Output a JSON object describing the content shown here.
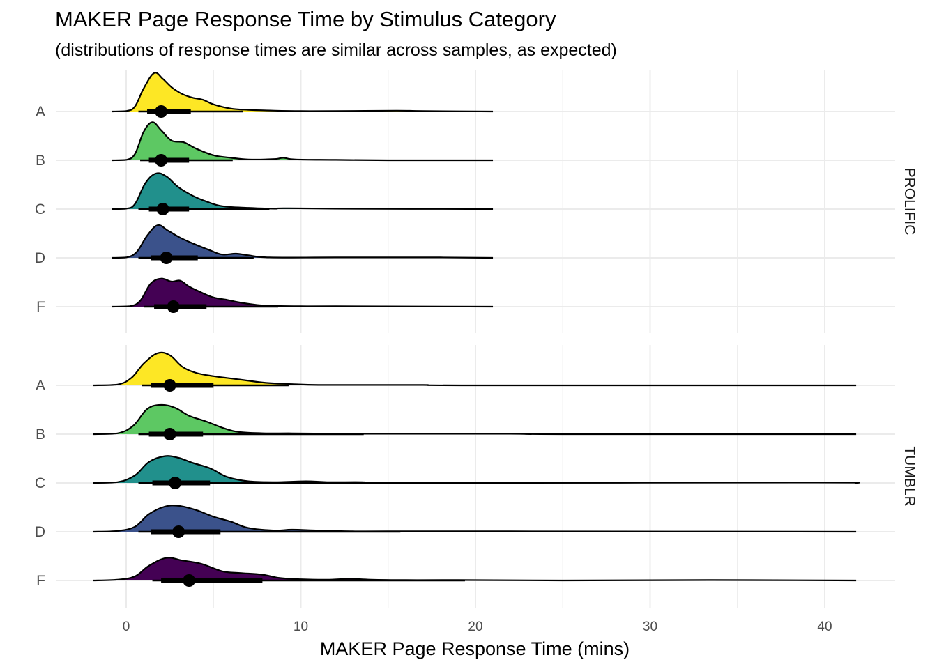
{
  "chart_data": {
    "type": "ridgeline",
    "title": "MAKER Page Response Time by Stimulus Category",
    "subtitle": "(distributions of response times are similar across samples, as expected)",
    "xlabel": "MAKER Page Response Time (mins)",
    "ylabel": "",
    "xlim": [
      -4,
      42.1
    ],
    "x_ticks": [
      0,
      10,
      20,
      30,
      40
    ],
    "categories": [
      "A",
      "B",
      "C",
      "D",
      "F"
    ],
    "grid": true,
    "colors": {
      "A": "#FDE725",
      "B": "#5DC863",
      "C": "#21908C",
      "D": "#3B528B",
      "F": "#440154"
    },
    "panels": [
      {
        "strip": "PROLIFIC",
        "density_range": [
          -0.8,
          21
        ],
        "series": [
          {
            "category": "A",
            "median": 2.0,
            "q1": 1.2,
            "q3": 3.7,
            "lo": 0.7,
            "hi": 6.7,
            "density": [
              [
                -0.8,
                0
              ],
              [
                0,
                0.01
              ],
              [
                0.5,
                0.12
              ],
              [
                1.0,
                0.55
              ],
              [
                1.6,
                0.92
              ],
              [
                2.1,
                0.78
              ],
              [
                2.6,
                0.58
              ],
              [
                3.2,
                0.42
              ],
              [
                3.8,
                0.33
              ],
              [
                4.4,
                0.28
              ],
              [
                5.0,
                0.17
              ],
              [
                6.0,
                0.07
              ],
              [
                7.0,
                0.04
              ],
              [
                8.5,
                0.02
              ],
              [
                10,
                0.01
              ],
              [
                12,
                0.01
              ],
              [
                15.5,
                0.02
              ],
              [
                17,
                0.01
              ],
              [
                21,
                0
              ]
            ]
          },
          {
            "category": "B",
            "median": 2.0,
            "q1": 1.3,
            "q3": 3.6,
            "lo": 0.8,
            "hi": 6.1,
            "density": [
              [
                -0.8,
                0
              ],
              [
                0,
                0.01
              ],
              [
                0.5,
                0.15
              ],
              [
                1.0,
                0.68
              ],
              [
                1.5,
                0.91
              ],
              [
                2.0,
                0.72
              ],
              [
                2.6,
                0.47
              ],
              [
                3.3,
                0.43
              ],
              [
                4.0,
                0.28
              ],
              [
                5.0,
                0.12
              ],
              [
                6.0,
                0.06
              ],
              [
                7.0,
                0.02
              ],
              [
                8.5,
                0.03
              ],
              [
                9,
                0.06
              ],
              [
                9.7,
                0.02
              ],
              [
                12,
                0.01
              ],
              [
                15,
                0
              ],
              [
                21,
                0
              ]
            ]
          },
          {
            "category": "C",
            "median": 2.1,
            "q1": 1.3,
            "q3": 3.6,
            "lo": 0.7,
            "hi": 8.2,
            "density": [
              [
                -0.8,
                0
              ],
              [
                0,
                0.01
              ],
              [
                0.5,
                0.12
              ],
              [
                1.1,
                0.62
              ],
              [
                1.7,
                0.85
              ],
              [
                2.3,
                0.78
              ],
              [
                3.0,
                0.52
              ],
              [
                3.8,
                0.32
              ],
              [
                4.6,
                0.18
              ],
              [
                5.5,
                0.07
              ],
              [
                7,
                0.03
              ],
              [
                8.5,
                0.01
              ],
              [
                9,
                0.02
              ],
              [
                12,
                0.01
              ],
              [
                21,
                0
              ]
            ]
          },
          {
            "category": "D",
            "median": 2.3,
            "q1": 1.4,
            "q3": 4.1,
            "lo": 0.7,
            "hi": 7.3,
            "density": [
              [
                -0.8,
                0
              ],
              [
                0,
                0.01
              ],
              [
                0.6,
                0.14
              ],
              [
                1.2,
                0.53
              ],
              [
                1.8,
                0.78
              ],
              [
                2.4,
                0.65
              ],
              [
                3.1,
                0.48
              ],
              [
                3.9,
                0.33
              ],
              [
                4.8,
                0.18
              ],
              [
                5.5,
                0.08
              ],
              [
                6.3,
                0.1
              ],
              [
                7.0,
                0.06
              ],
              [
                8.2,
                0.01
              ],
              [
                12,
                0.01
              ],
              [
                18,
                0.01
              ],
              [
                21,
                0
              ]
            ]
          },
          {
            "category": "F",
            "median": 2.7,
            "q1": 1.6,
            "q3": 4.6,
            "lo": 1.0,
            "hi": 8.7,
            "density": [
              [
                -0.8,
                0
              ],
              [
                0.2,
                0.01
              ],
              [
                0.8,
                0.14
              ],
              [
                1.4,
                0.55
              ],
              [
                2.0,
                0.67
              ],
              [
                2.6,
                0.6
              ],
              [
                3.1,
                0.62
              ],
              [
                3.6,
                0.48
              ],
              [
                4.3,
                0.34
              ],
              [
                5.0,
                0.22
              ],
              [
                5.8,
                0.16
              ],
              [
                6.5,
                0.1
              ],
              [
                7.5,
                0.04
              ],
              [
                8.5,
                0.02
              ],
              [
                10,
                0.01
              ],
              [
                12,
                0.01
              ],
              [
                21,
                0
              ]
            ]
          }
        ]
      },
      {
        "strip": "TUMBLR",
        "density_range": [
          -1.9,
          41.8
        ],
        "series": [
          {
            "category": "A",
            "median": 2.5,
            "q1": 1.4,
            "q3": 5.0,
            "lo": 0.9,
            "hi": 9.3,
            "density": [
              [
                -1.9,
                0
              ],
              [
                -0.5,
                0.02
              ],
              [
                0.3,
                0.18
              ],
              [
                1.0,
                0.52
              ],
              [
                1.8,
                0.77
              ],
              [
                2.5,
                0.72
              ],
              [
                3.2,
                0.45
              ],
              [
                4.0,
                0.3
              ],
              [
                5.0,
                0.22
              ],
              [
                6.5,
                0.14
              ],
              [
                8.0,
                0.06
              ],
              [
                9.5,
                0.03
              ],
              [
                11,
                0.01
              ],
              [
                14,
                0.01
              ],
              [
                17,
                0.01
              ],
              [
                20,
                0
              ],
              [
                41.8,
                0
              ]
            ]
          },
          {
            "category": "B",
            "median": 2.5,
            "q1": 1.3,
            "q3": 4.4,
            "lo": 0.7,
            "hi": 13.6,
            "density": [
              [
                -1.9,
                0
              ],
              [
                -0.5,
                0.02
              ],
              [
                0.4,
                0.2
              ],
              [
                1.2,
                0.6
              ],
              [
                2.0,
                0.7
              ],
              [
                2.8,
                0.63
              ],
              [
                3.6,
                0.44
              ],
              [
                4.6,
                0.3
              ],
              [
                5.6,
                0.14
              ],
              [
                6.5,
                0.05
              ],
              [
                8,
                0.02
              ],
              [
                9.5,
                0.02
              ],
              [
                12,
                0.01
              ],
              [
                15,
                0.01
              ],
              [
                22,
                0.01
              ],
              [
                25,
                0
              ],
              [
                41.8,
                0
              ]
            ]
          },
          {
            "category": "C",
            "median": 2.8,
            "q1": 1.5,
            "q3": 4.8,
            "lo": 0.7,
            "hi": 14.0,
            "density": [
              [
                -1.9,
                0
              ],
              [
                -0.5,
                0.02
              ],
              [
                0.5,
                0.18
              ],
              [
                1.3,
                0.5
              ],
              [
                2.2,
                0.64
              ],
              [
                3.0,
                0.6
              ],
              [
                3.8,
                0.48
              ],
              [
                4.8,
                0.35
              ],
              [
                5.8,
                0.14
              ],
              [
                7.0,
                0.04
              ],
              [
                8.5,
                0.02
              ],
              [
                10.3,
                0.04
              ],
              [
                11.5,
                0.02
              ],
              [
                13.5,
                0.02
              ],
              [
                14.3,
                0
              ],
              [
                20,
                0
              ],
              [
                39.5,
                0.01
              ],
              [
                41.8,
                0
              ]
            ]
          },
          {
            "category": "D",
            "median": 3.0,
            "q1": 1.4,
            "q3": 5.4,
            "lo": 0.7,
            "hi": 15.7,
            "density": [
              [
                -1.9,
                0
              ],
              [
                -0.5,
                0.02
              ],
              [
                0.5,
                0.12
              ],
              [
                1.3,
                0.42
              ],
              [
                2.2,
                0.6
              ],
              [
                3.0,
                0.62
              ],
              [
                4.0,
                0.52
              ],
              [
                5.0,
                0.36
              ],
              [
                6.0,
                0.24
              ],
              [
                7.0,
                0.09
              ],
              [
                8.5,
                0.03
              ],
              [
                9.5,
                0.05
              ],
              [
                11,
                0.03
              ],
              [
                13,
                0.01
              ],
              [
                15,
                0.01
              ],
              [
                22,
                0.01
              ],
              [
                41.8,
                0
              ]
            ]
          },
          {
            "category": "F",
            "median": 3.6,
            "q1": 2.0,
            "q3": 7.8,
            "lo": 1.5,
            "hi": 19.4,
            "density": [
              [
                -1.9,
                0
              ],
              [
                -0.5,
                0.02
              ],
              [
                0.5,
                0.1
              ],
              [
                1.3,
                0.35
              ],
              [
                2.3,
                0.54
              ],
              [
                3.2,
                0.48
              ],
              [
                4.3,
                0.4
              ],
              [
                5.5,
                0.22
              ],
              [
                6.5,
                0.18
              ],
              [
                7.8,
                0.14
              ],
              [
                8.8,
                0.06
              ],
              [
                10,
                0.03
              ],
              [
                11.5,
                0.02
              ],
              [
                12.8,
                0.04
              ],
              [
                14,
                0.02
              ],
              [
                16,
                0.01
              ],
              [
                19,
                0.01
              ],
              [
                25,
                0
              ],
              [
                33.5,
                0.01
              ],
              [
                41.8,
                0
              ]
            ]
          }
        ]
      }
    ]
  }
}
